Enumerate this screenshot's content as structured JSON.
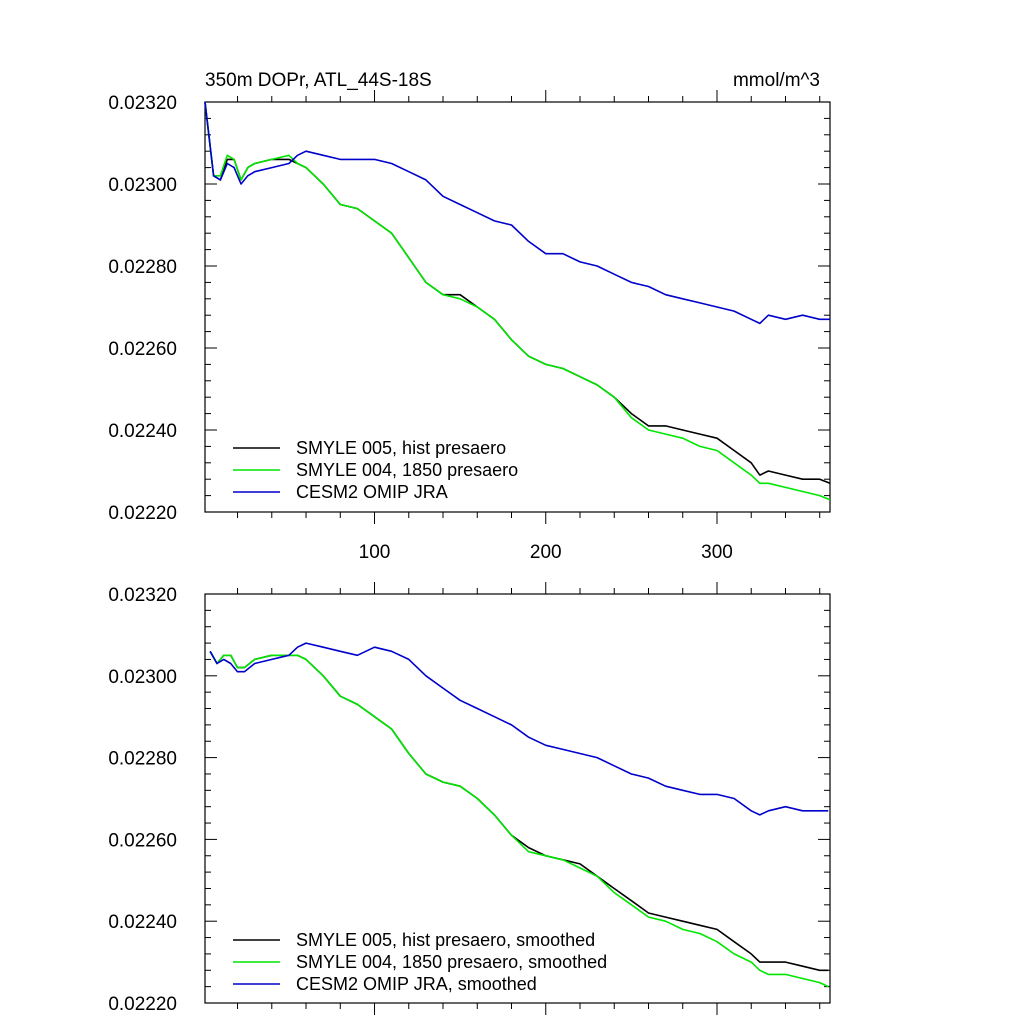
{
  "title_left": "350m DOPr, ATL_44S-18S",
  "title_right": "mmol/m^3",
  "chart_data": [
    {
      "type": "line",
      "panel": "top",
      "title": "350m DOPr, ATL_44S-18S",
      "units": "mmol/m^3",
      "xlim": [
        1,
        366
      ],
      "ylim": [
        0.0222,
        0.0232
      ],
      "xticks": [
        100,
        200,
        300
      ],
      "xtick_labels": [
        "100",
        "200",
        "300"
      ],
      "yticks": [
        0.0222,
        0.0224,
        0.0226,
        0.0228,
        0.023,
        0.0232
      ],
      "ytick_labels": [
        "0.02220",
        "0.02240",
        "0.02260",
        "0.02280",
        "0.02300",
        "0.02320"
      ],
      "grid": false,
      "legend_position": "bottom-left",
      "series": [
        {
          "name": "SMYLE 005, hist presaero",
          "color": "#000000",
          "x": [
            1,
            6,
            10,
            14,
            18,
            22,
            26,
            30,
            40,
            50,
            55,
            60,
            70,
            80,
            90,
            100,
            110,
            120,
            130,
            140,
            150,
            160,
            170,
            180,
            190,
            200,
            210,
            220,
            230,
            240,
            250,
            260,
            270,
            280,
            290,
            300,
            310,
            320,
            325,
            330,
            340,
            350,
            360,
            366
          ],
          "y": [
            0.0232,
            0.02302,
            0.02301,
            0.02306,
            0.02306,
            0.02301,
            0.02304,
            0.02305,
            0.02306,
            0.02306,
            0.02305,
            0.02304,
            0.023,
            0.02295,
            0.02294,
            0.02291,
            0.02288,
            0.02282,
            0.02276,
            0.02273,
            0.02273,
            0.0227,
            0.02267,
            0.02262,
            0.02258,
            0.02256,
            0.02255,
            0.02253,
            0.02251,
            0.02248,
            0.02244,
            0.02241,
            0.02241,
            0.0224,
            0.02239,
            0.02238,
            0.02235,
            0.02232,
            0.02229,
            0.0223,
            0.02229,
            0.02228,
            0.02228,
            0.02227
          ]
        },
        {
          "name": "SMYLE 004, 1850 presaero",
          "color": "#00e600",
          "x": [
            1,
            6,
            10,
            14,
            18,
            22,
            26,
            30,
            40,
            50,
            55,
            60,
            70,
            80,
            90,
            100,
            110,
            120,
            130,
            140,
            150,
            160,
            170,
            180,
            190,
            200,
            210,
            220,
            230,
            240,
            250,
            260,
            270,
            280,
            290,
            300,
            310,
            320,
            325,
            330,
            340,
            350,
            360,
            366
          ],
          "y": [
            0.0232,
            0.02302,
            0.02302,
            0.02307,
            0.02306,
            0.02301,
            0.02304,
            0.02305,
            0.02306,
            0.02307,
            0.02305,
            0.02304,
            0.023,
            0.02295,
            0.02294,
            0.02291,
            0.02288,
            0.02282,
            0.02276,
            0.02273,
            0.02272,
            0.0227,
            0.02267,
            0.02262,
            0.02258,
            0.02256,
            0.02255,
            0.02253,
            0.02251,
            0.02248,
            0.02243,
            0.0224,
            0.02239,
            0.02238,
            0.02236,
            0.02235,
            0.02232,
            0.02229,
            0.02227,
            0.02227,
            0.02226,
            0.02225,
            0.02224,
            0.02223
          ]
        },
        {
          "name": "CESM2 OMIP JRA",
          "color": "#0000cc",
          "x": [
            1,
            6,
            10,
            14,
            18,
            22,
            26,
            30,
            40,
            50,
            55,
            60,
            70,
            80,
            90,
            100,
            110,
            120,
            130,
            140,
            150,
            160,
            170,
            180,
            190,
            200,
            210,
            220,
            230,
            240,
            250,
            260,
            270,
            280,
            290,
            300,
            310,
            320,
            325,
            330,
            340,
            350,
            360,
            366
          ],
          "y": [
            0.0232,
            0.02302,
            0.02301,
            0.02305,
            0.02304,
            0.023,
            0.02302,
            0.02303,
            0.02304,
            0.02305,
            0.02307,
            0.02308,
            0.02307,
            0.02306,
            0.02306,
            0.02306,
            0.02305,
            0.02303,
            0.02301,
            0.02297,
            0.02295,
            0.02293,
            0.02291,
            0.0229,
            0.02286,
            0.02283,
            0.02283,
            0.02281,
            0.0228,
            0.02278,
            0.02276,
            0.02275,
            0.02273,
            0.02272,
            0.02271,
            0.0227,
            0.02269,
            0.02267,
            0.02266,
            0.02268,
            0.02267,
            0.02268,
            0.02267,
            0.02267
          ]
        }
      ]
    },
    {
      "type": "line",
      "panel": "bottom",
      "xlim": [
        1,
        366
      ],
      "ylim": [
        0.0222,
        0.0232
      ],
      "xticks": [
        100,
        200,
        300
      ],
      "yticks": [
        0.0222,
        0.0224,
        0.0226,
        0.0228,
        0.023,
        0.0232
      ],
      "ytick_labels": [
        "0.02220",
        "0.02240",
        "0.02260",
        "0.02280",
        "0.02300",
        "0.02320"
      ],
      "grid": false,
      "legend_position": "bottom-left",
      "series": [
        {
          "name": "SMYLE 005, hist presaero, smoothed",
          "color": "#000000",
          "x": [
            4,
            8,
            12,
            16,
            20,
            24,
            30,
            40,
            50,
            55,
            60,
            70,
            80,
            90,
            100,
            110,
            120,
            130,
            140,
            150,
            160,
            170,
            180,
            190,
            200,
            210,
            220,
            230,
            240,
            250,
            260,
            270,
            280,
            290,
            300,
            310,
            320,
            325,
            330,
            340,
            350,
            360,
            365
          ],
          "y": [
            0.02306,
            0.02303,
            0.02305,
            0.02305,
            0.02302,
            0.02302,
            0.02304,
            0.02305,
            0.02305,
            0.02305,
            0.02304,
            0.023,
            0.02295,
            0.02293,
            0.0229,
            0.02287,
            0.02281,
            0.02276,
            0.02274,
            0.02273,
            0.0227,
            0.02266,
            0.02261,
            0.02258,
            0.02256,
            0.02255,
            0.02254,
            0.02251,
            0.02248,
            0.02245,
            0.02242,
            0.02241,
            0.0224,
            0.02239,
            0.02238,
            0.02235,
            0.02232,
            0.0223,
            0.0223,
            0.0223,
            0.02229,
            0.02228,
            0.02228
          ]
        },
        {
          "name": "SMYLE 004, 1850 presaero, smoothed",
          "color": "#00e600",
          "x": [
            4,
            8,
            12,
            16,
            20,
            24,
            30,
            40,
            50,
            55,
            60,
            70,
            80,
            90,
            100,
            110,
            120,
            130,
            140,
            150,
            160,
            170,
            180,
            190,
            200,
            210,
            220,
            230,
            240,
            250,
            260,
            270,
            280,
            290,
            300,
            310,
            320,
            325,
            330,
            340,
            350,
            360,
            365
          ],
          "y": [
            0.02306,
            0.02303,
            0.02305,
            0.02305,
            0.02302,
            0.02302,
            0.02304,
            0.02305,
            0.02305,
            0.02305,
            0.02304,
            0.023,
            0.02295,
            0.02293,
            0.0229,
            0.02287,
            0.02281,
            0.02276,
            0.02274,
            0.02273,
            0.0227,
            0.02266,
            0.02261,
            0.02257,
            0.02256,
            0.02255,
            0.02253,
            0.02251,
            0.02247,
            0.02244,
            0.02241,
            0.0224,
            0.02238,
            0.02237,
            0.02235,
            0.02232,
            0.0223,
            0.02228,
            0.02227,
            0.02227,
            0.02226,
            0.02225,
            0.02224
          ]
        },
        {
          "name": "CESM2 OMIP JRA, smoothed",
          "color": "#0000cc",
          "x": [
            4,
            8,
            12,
            16,
            20,
            24,
            30,
            40,
            50,
            55,
            60,
            70,
            80,
            90,
            100,
            110,
            120,
            130,
            140,
            150,
            160,
            170,
            180,
            190,
            200,
            210,
            220,
            230,
            240,
            250,
            260,
            270,
            280,
            290,
            300,
            310,
            320,
            325,
            330,
            340,
            350,
            360,
            365
          ],
          "y": [
            0.02306,
            0.02303,
            0.02304,
            0.02303,
            0.02301,
            0.02301,
            0.02303,
            0.02304,
            0.02305,
            0.02307,
            0.02308,
            0.02307,
            0.02306,
            0.02305,
            0.02307,
            0.02306,
            0.02304,
            0.023,
            0.02297,
            0.02294,
            0.02292,
            0.0229,
            0.02288,
            0.02285,
            0.02283,
            0.02282,
            0.02281,
            0.0228,
            0.02278,
            0.02276,
            0.02275,
            0.02273,
            0.02272,
            0.02271,
            0.02271,
            0.0227,
            0.02267,
            0.02266,
            0.02267,
            0.02268,
            0.02267,
            0.02267,
            0.02267
          ]
        }
      ]
    }
  ]
}
